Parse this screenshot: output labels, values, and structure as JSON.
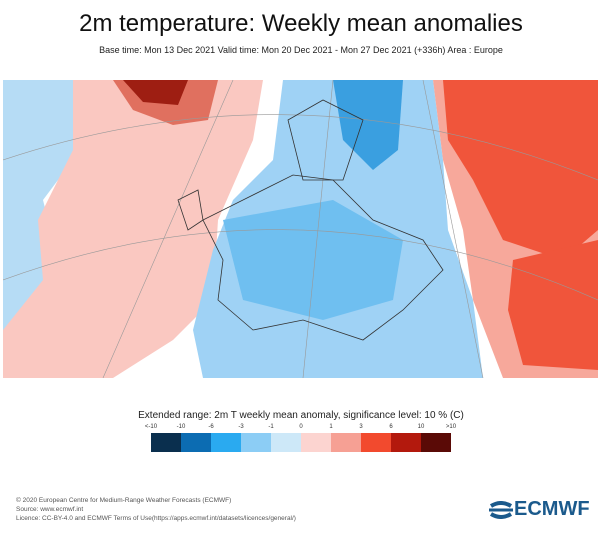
{
  "title": "2m temperature: Weekly mean anomalies",
  "subtitle": "Base time: Mon 13 Dec 2021 Valid time: Mon 20 Dec 2021 - Mon 27 Dec 2021 (+336h) Area : Europe",
  "legend": {
    "title": "Extended range: 2m T weekly mean anomaly, significance level: 10 % (C)",
    "ticks": [
      "<-10",
      "-10",
      "-6",
      "-3",
      "-1",
      "0",
      "1",
      "3",
      "6",
      "10",
      ">10"
    ],
    "colors": [
      "#0a2f4e",
      "#0c6cb2",
      "#2aaaf0",
      "#8ccdf5",
      "#cde8f8",
      "#fcd4d0",
      "#f6a094",
      "#f24a2e",
      "#b3190d",
      "#5a0a06"
    ]
  },
  "footer": {
    "line1": "© 2020 European Centre for Medium-Range Weather Forecasts (ECMWF)",
    "line2": "Source: www.ecmwf.int",
    "line3": "Licence: CC-BY-4.0 and ECMWF Terms of Use(https://apps.ecmwf.int/datasets/licences/general/)"
  },
  "logo": "ECMWF"
}
